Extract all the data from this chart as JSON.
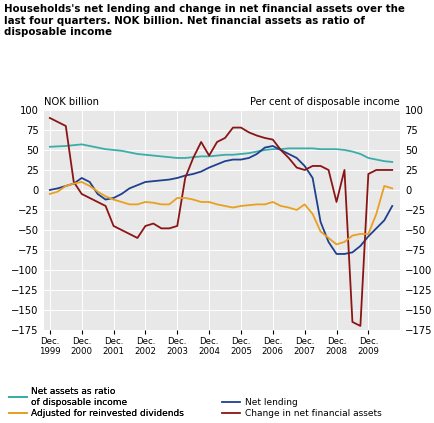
{
  "title": "Households's net lending and change in net financial assets over the\nlast four quarters. NOK billion. Net financial assets as ratio of\ndisposable income",
  "ylabel_left": "NOK billion",
  "ylabel_right": "Per cent of disposable income",
  "ylim": [
    -175,
    100
  ],
  "yticks": [
    -175,
    -150,
    -125,
    -100,
    -75,
    -50,
    -25,
    0,
    25,
    50,
    75,
    100
  ],
  "bg_color": "#E8E8E8",
  "net_assets": {
    "label": "Net assets as ratio\nof disposable income",
    "color": "#3AADA8"
  },
  "net_lending": {
    "label": "Net lending",
    "color": "#1F3F8F"
  },
  "change_net_assets": {
    "label": "Change in net financial assets",
    "color": "#8B1515"
  },
  "adjusted": {
    "label": "Adjusted for reinvested dividends",
    "color": "#E8A020"
  },
  "quarterly_x": [
    1999.0,
    1999.25,
    1999.5,
    1999.75,
    2000.0,
    2000.25,
    2000.5,
    2000.75,
    2001.0,
    2001.25,
    2001.5,
    2001.75,
    2002.0,
    2002.25,
    2002.5,
    2002.75,
    2003.0,
    2003.25,
    2003.5,
    2003.75,
    2004.0,
    2004.25,
    2004.5,
    2004.75,
    2005.0,
    2005.25,
    2005.5,
    2005.75,
    2006.0,
    2006.25,
    2006.5,
    2006.75,
    2007.0,
    2007.25,
    2007.5,
    2007.75,
    2008.0,
    2008.25,
    2008.5,
    2008.75,
    2009.0,
    2009.25,
    2009.5,
    2009.75
  ],
  "net_assets_y": [
    54,
    54.5,
    55,
    56,
    57,
    55,
    53,
    51,
    50,
    49,
    47,
    45,
    44,
    43,
    42,
    41,
    40,
    40,
    41,
    42,
    42,
    43,
    44,
    44,
    45,
    46,
    48,
    50,
    51,
    51,
    52,
    52,
    52,
    52,
    51,
    51,
    51,
    50,
    48,
    45,
    40,
    38,
    36,
    35
  ],
  "nl_y": [
    0,
    2,
    5,
    8,
    15,
    10,
    -5,
    -12,
    -10,
    -5,
    2,
    6,
    10,
    11,
    12,
    13,
    15,
    18,
    20,
    23,
    28,
    32,
    36,
    38,
    38,
    40,
    45,
    53,
    55,
    50,
    45,
    40,
    30,
    15,
    -40,
    -65,
    -80,
    -80,
    -78,
    -70,
    -58,
    -48,
    -38,
    -20
  ],
  "cna_y": [
    90,
    85,
    80,
    10,
    -5,
    -10,
    -15,
    -20,
    -45,
    -50,
    -55,
    -60,
    -45,
    -42,
    -48,
    -48,
    -45,
    15,
    40,
    60,
    43,
    60,
    65,
    78,
    78,
    72,
    68,
    65,
    63,
    50,
    40,
    28,
    25,
    30,
    30,
    25,
    -15,
    25,
    -165,
    -170,
    20,
    25,
    25,
    25
  ],
  "adj_y": [
    -5,
    -2,
    5,
    8,
    10,
    5,
    -2,
    -8,
    -12,
    -15,
    -18,
    -18,
    -15,
    -16,
    -18,
    -18,
    -10,
    -10,
    -12,
    -15,
    -15,
    -18,
    -20,
    -22,
    -20,
    -19,
    -18,
    -18,
    -15,
    -20,
    -22,
    -25,
    -18,
    -30,
    -52,
    -60,
    -68,
    -65,
    -57,
    -55,
    -55,
    -30,
    5,
    2
  ]
}
